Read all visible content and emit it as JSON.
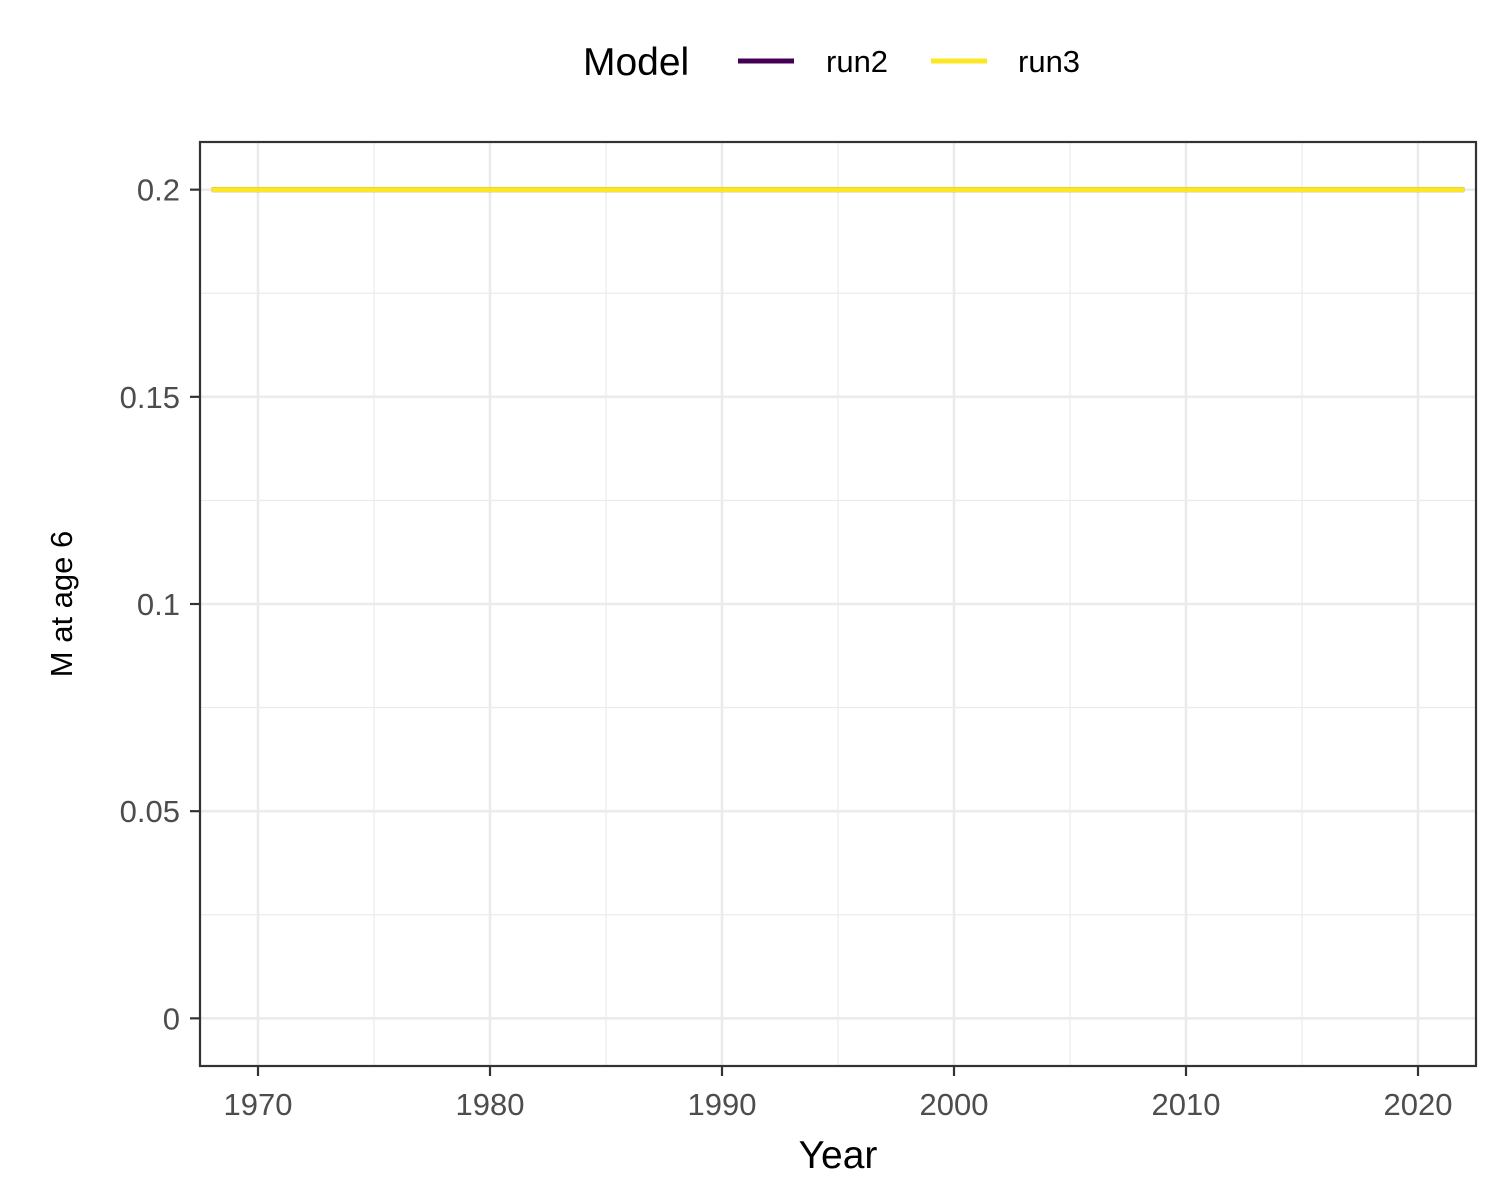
{
  "chart_data": {
    "type": "line",
    "title": "",
    "xlabel": "Year",
    "ylabel": "M at age 6",
    "xlim": [
      1967.5,
      2022.5
    ],
    "ylim": [
      -0.0115,
      0.2115
    ],
    "x_ticks": [
      1970,
      1980,
      1990,
      2000,
      2010,
      2020
    ],
    "x_minor_ticks": [
      1975,
      1985,
      1995,
      2005,
      2015
    ],
    "x_tick_labels": [
      "1970",
      "1980",
      "1990",
      "2000",
      "2010",
      "2020"
    ],
    "y_ticks": [
      0,
      0.05,
      0.1,
      0.15,
      0.2
    ],
    "y_minor_ticks": [
      0.025,
      0.075,
      0.125,
      0.175
    ],
    "y_tick_labels": [
      "0",
      "0.05",
      "0.1",
      "0.15",
      "0.2"
    ],
    "grid": true,
    "legend": {
      "title": "Model",
      "position": "top",
      "entries": [
        "run2",
        "run3"
      ]
    },
    "series": [
      {
        "name": "run2",
        "color": "#440154",
        "x": [
          1968,
          2022
        ],
        "y": [
          0.2,
          0.2
        ]
      },
      {
        "name": "run3",
        "color": "#FDE725",
        "x": [
          1968,
          2022
        ],
        "y": [
          0.2,
          0.2
        ]
      }
    ]
  }
}
